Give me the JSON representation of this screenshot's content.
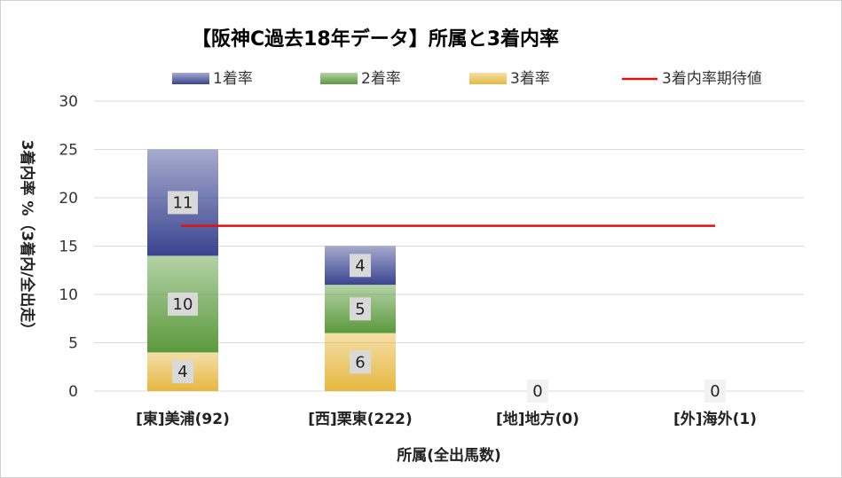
{
  "chart_data": {
    "type": "bar",
    "title": "【阪神C過去18年データ】所属と3着内率",
    "categories": [
      "[東]美浦(92)",
      "[西]栗東(222)",
      "[地]地方(0)",
      "[外]海外(1)"
    ],
    "series": [
      {
        "name": "1着率",
        "values": [
          11,
          4,
          0,
          0
        ],
        "color": "#3a4490"
      },
      {
        "name": "2着率",
        "values": [
          10,
          5,
          0,
          0
        ],
        "color": "#5a9a3c"
      },
      {
        "name": "3着率",
        "values": [
          4,
          6,
          0,
          0
        ],
        "color": "#e6b840"
      }
    ],
    "line": {
      "name": "3着内率期待値",
      "value": 17.1,
      "color": "#e01010"
    },
    "data_labels": [
      {
        "category_index": 0,
        "series_index": 2,
        "text": "4"
      },
      {
        "category_index": 0,
        "series_index": 1,
        "text": "10"
      },
      {
        "category_index": 0,
        "series_index": 0,
        "text": "11"
      },
      {
        "category_index": 1,
        "series_index": 2,
        "text": "6"
      },
      {
        "category_index": 1,
        "series_index": 1,
        "text": "5"
      },
      {
        "category_index": 1,
        "series_index": 0,
        "text": "4"
      },
      {
        "category_index": 2,
        "series_index": 0,
        "text": "0"
      },
      {
        "category_index": 3,
        "series_index": 0,
        "text": "0"
      }
    ],
    "yticks": [
      "0",
      "5",
      "10",
      "15",
      "20",
      "25",
      "30"
    ],
    "ylim": [
      0,
      30
    ],
    "ylabel": "3着内率 %（3着内/全出走）",
    "xlabel": "所属(全出馬数)",
    "grid": true,
    "legend_position": "top"
  }
}
